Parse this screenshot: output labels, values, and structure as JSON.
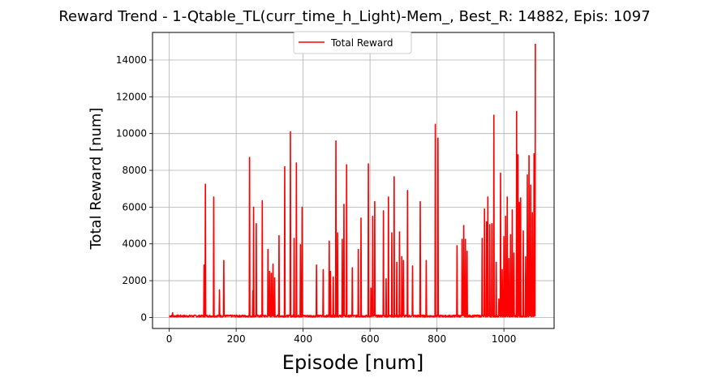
{
  "chart_data": {
    "type": "line",
    "title": "Reward Trend - 1-Qtable_TL(curr_time_h_Light)-Mem_, Best_R: 14882, Epis: 1097",
    "xlabel": "Episode [num]",
    "ylabel": "Total Reward [num]",
    "xlim": [
      -50,
      1150
    ],
    "ylim": [
      -600,
      15500
    ],
    "x_ticks": [
      0,
      200,
      400,
      600,
      800,
      1000
    ],
    "y_ticks": [
      0,
      2000,
      4000,
      6000,
      8000,
      10000,
      12000,
      14000
    ],
    "grid": true,
    "legend": "upper-center",
    "series": [
      {
        "name": "Total Reward",
        "color": "#ff0000",
        "peaks": [
          [
            10,
            250
          ],
          [
            104,
            2850
          ],
          [
            108,
            7250
          ],
          [
            133,
            6550
          ],
          [
            150,
            1500
          ],
          [
            163,
            3100
          ],
          [
            240,
            8700
          ],
          [
            250,
            1450
          ],
          [
            252,
            6000
          ],
          [
            260,
            5100
          ],
          [
            278,
            6350
          ],
          [
            295,
            3700
          ],
          [
            300,
            2500
          ],
          [
            305,
            2400
          ],
          [
            310,
            2900
          ],
          [
            315,
            2150
          ],
          [
            328,
            4450
          ],
          [
            345,
            8200
          ],
          [
            362,
            10100
          ],
          [
            373,
            4300
          ],
          [
            380,
            8400
          ],
          [
            392,
            3950
          ],
          [
            397,
            6000
          ],
          [
            440,
            2850
          ],
          [
            460,
            2600
          ],
          [
            478,
            4150
          ],
          [
            482,
            2500
          ],
          [
            490,
            2200
          ],
          [
            498,
            9600
          ],
          [
            503,
            4600
          ],
          [
            517,
            4250
          ],
          [
            522,
            6150
          ],
          [
            530,
            8300
          ],
          [
            547,
            2700
          ],
          [
            565,
            3700
          ],
          [
            573,
            5400
          ],
          [
            595,
            8350
          ],
          [
            603,
            1600
          ],
          [
            608,
            5500
          ],
          [
            614,
            6300
          ],
          [
            640,
            5800
          ],
          [
            648,
            2100
          ],
          [
            655,
            6550
          ],
          [
            665,
            4600
          ],
          [
            672,
            7650
          ],
          [
            680,
            3000
          ],
          [
            688,
            4650
          ],
          [
            695,
            3300
          ],
          [
            700,
            3100
          ],
          [
            712,
            6900
          ],
          [
            727,
            2800
          ],
          [
            750,
            6300
          ],
          [
            768,
            3100
          ],
          [
            795,
            10500
          ],
          [
            803,
            9750
          ],
          [
            860,
            3900
          ],
          [
            875,
            4250
          ],
          [
            880,
            5000
          ],
          [
            885,
            4250
          ],
          [
            890,
            3600
          ],
          [
            935,
            4300
          ],
          [
            942,
            5900
          ],
          [
            948,
            5200
          ],
          [
            952,
            6550
          ],
          [
            958,
            5050
          ],
          [
            964,
            5100
          ],
          [
            970,
            11000
          ],
          [
            977,
            3000
          ],
          [
            985,
            1000
          ],
          [
            990,
            7850
          ],
          [
            995,
            2600
          ],
          [
            1000,
            4400
          ],
          [
            1005,
            5500
          ],
          [
            1010,
            6550
          ],
          [
            1015,
            3200
          ],
          [
            1020,
            4500
          ],
          [
            1025,
            5850
          ],
          [
            1030,
            3500
          ],
          [
            1038,
            11200
          ],
          [
            1042,
            8850
          ],
          [
            1046,
            6250
          ],
          [
            1050,
            6500
          ],
          [
            1058,
            4700
          ],
          [
            1065,
            3300
          ],
          [
            1070,
            7750
          ],
          [
            1075,
            8800
          ],
          [
            1080,
            7200
          ],
          [
            1085,
            5700
          ],
          [
            1090,
            8900
          ],
          [
            1094,
            14882
          ]
        ]
      }
    ]
  }
}
